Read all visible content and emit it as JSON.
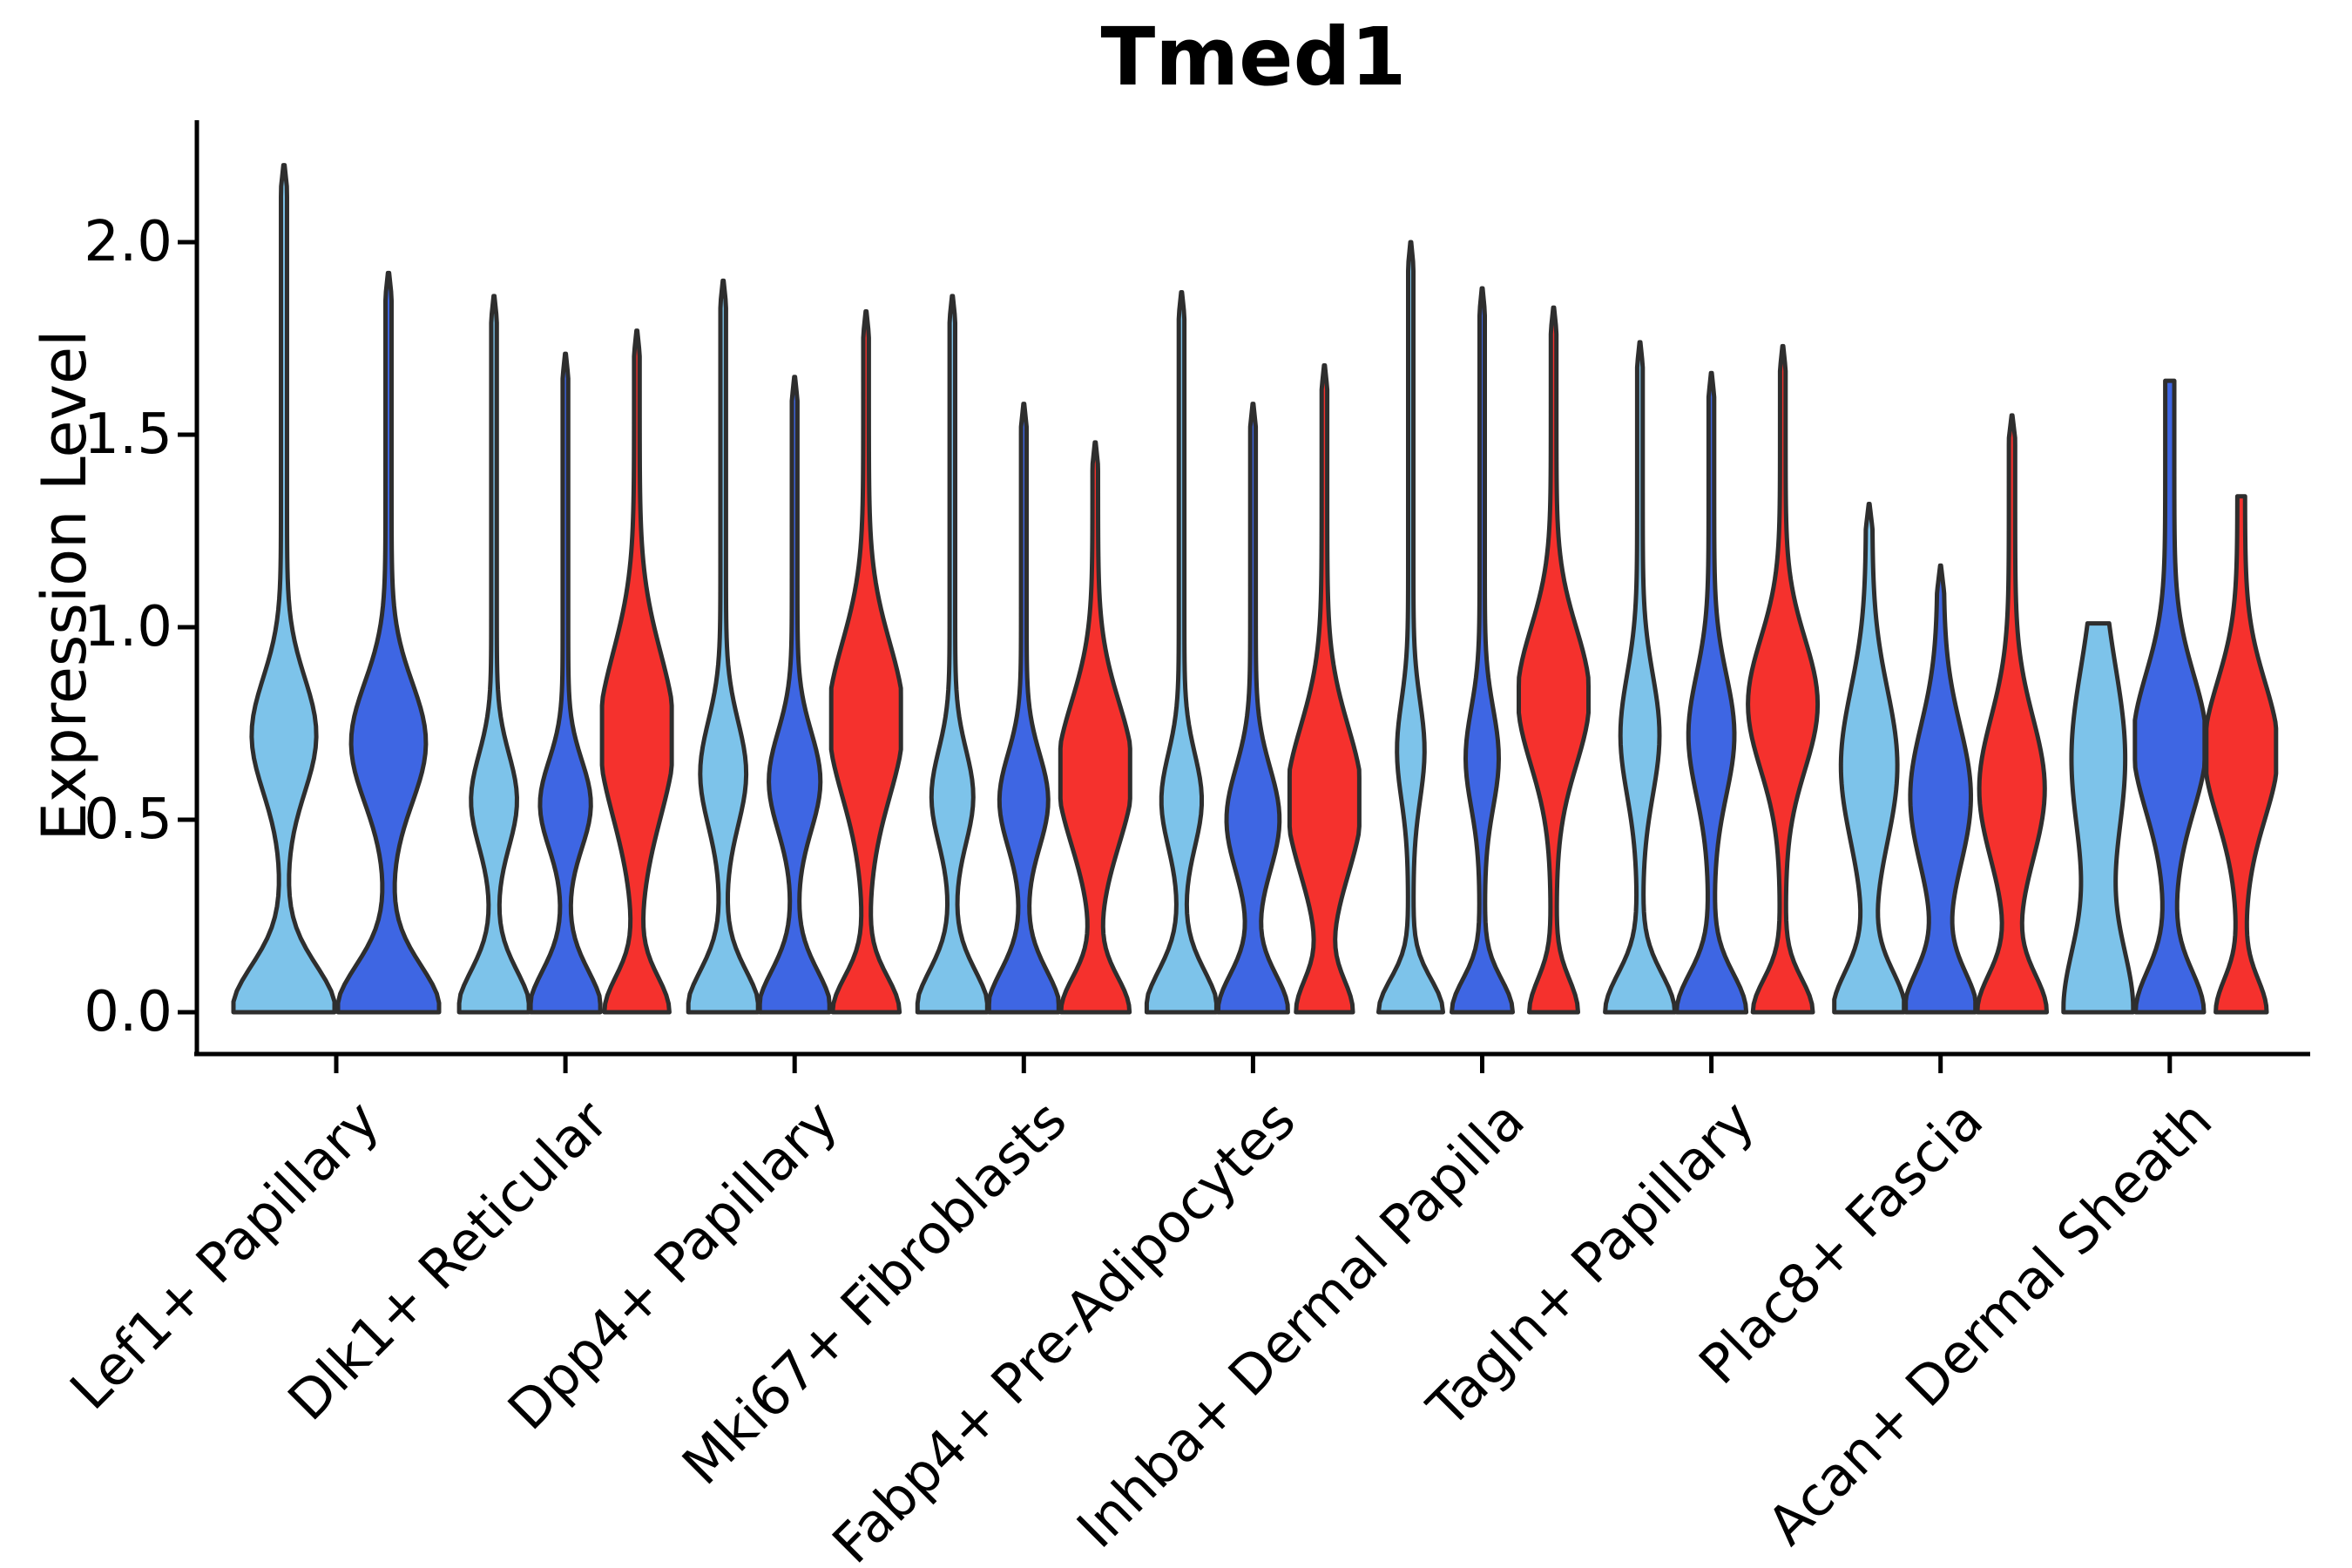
{
  "title": "Tmed1",
  "y_axis": {
    "label": "Expression Level",
    "tick_labels": [
      "0.0",
      "0.5",
      "1.0",
      "1.5",
      "2.0"
    ],
    "tick_values": [
      0.0,
      0.5,
      1.0,
      1.5,
      2.0
    ]
  },
  "colors": {
    "light_blue": "#7DC3EA",
    "dark_blue": "#3E66E3",
    "red": "#F5312D",
    "outline": "#2E2E2E",
    "axis": "#000000",
    "text": "#000000"
  },
  "chart_data": {
    "type": "violin",
    "title": "Tmed1",
    "xlabel": "",
    "ylabel": "Expression Level",
    "ylim": [
      -0.1,
      2.32
    ],
    "yticks": [
      0.0,
      0.5,
      1.0,
      1.5,
      2.0
    ],
    "grid": false,
    "legend": "none",
    "series_color_keys": [
      "light_blue",
      "dark_blue",
      "red"
    ],
    "categories": [
      "Lef1+ Papillary",
      "Dlk1+ Reticular",
      "Dpp4+ Papillary",
      "Mki67+ Fibroblasts",
      "Fabp4+ Pre-Adipocytes",
      "Inhba+ Dermal Papilla",
      "Tagln+ Papillary",
      "Plac8+ Fascia",
      "Acan+ Dermal Sheath"
    ],
    "groups": [
      {
        "category": "Lef1+ Papillary",
        "violins": [
          {
            "series": "light_blue",
            "peak": 2.2,
            "base": 0.97,
            "bsig": 0.17,
            "bc": 0.72,
            "bs": 0.21,
            "bamp": 0.58,
            "tailw": 0.06,
            "tip": "point"
          },
          {
            "series": "dark_blue",
            "peak": 1.92,
            "base": 0.97,
            "bsig": 0.17,
            "bc": 0.7,
            "bs": 0.22,
            "bamp": 0.68,
            "tailw": 0.06,
            "tip": "point"
          }
        ]
      },
      {
        "category": "Dlk1+ Reticular",
        "violins": [
          {
            "series": "light_blue",
            "peak": 1.86,
            "base": 0.97,
            "bsig": 0.15,
            "bc": 0.55,
            "bs": 0.17,
            "bamp": 0.58,
            "tailw": 0.08,
            "tip": "point"
          },
          {
            "series": "dark_blue",
            "peak": 1.71,
            "base": 0.97,
            "bsig": 0.15,
            "bc": 0.54,
            "bs": 0.16,
            "bamp": 0.65,
            "tailw": 0.08,
            "tip": "point"
          },
          {
            "series": "red",
            "peak": 1.77,
            "base": 0.85,
            "bsig": 0.13,
            "bc": 0.72,
            "bs": 0.3,
            "bamp": 1.0,
            "tailw": 0.08,
            "tip": "point"
          }
        ]
      },
      {
        "category": "Dpp4+ Papillary",
        "violins": [
          {
            "series": "light_blue",
            "peak": 1.9,
            "base": 0.97,
            "bsig": 0.15,
            "bc": 0.62,
            "bs": 0.19,
            "bamp": 0.58,
            "tailw": 0.08,
            "tip": "point"
          },
          {
            "series": "dark_blue",
            "peak": 1.65,
            "base": 0.97,
            "bsig": 0.15,
            "bc": 0.6,
            "bs": 0.18,
            "bamp": 0.66,
            "tailw": 0.08,
            "tip": "point"
          },
          {
            "series": "red",
            "peak": 1.82,
            "base": 0.88,
            "bsig": 0.13,
            "bc": 0.76,
            "bs": 0.28,
            "bamp": 1.0,
            "tailw": 0.08,
            "tip": "point"
          }
        ]
      },
      {
        "category": "Mki67+ Fibroblasts",
        "violins": [
          {
            "series": "light_blue",
            "peak": 1.86,
            "base": 0.97,
            "bsig": 0.15,
            "bc": 0.56,
            "bs": 0.17,
            "bamp": 0.52,
            "tailw": 0.08,
            "tip": "point"
          },
          {
            "series": "dark_blue",
            "peak": 1.58,
            "base": 0.97,
            "bsig": 0.15,
            "bc": 0.55,
            "bs": 0.17,
            "bamp": 0.62,
            "tailw": 0.08,
            "tip": "point"
          },
          {
            "series": "red",
            "peak": 1.48,
            "base": 0.9,
            "bsig": 0.13,
            "bc": 0.62,
            "bs": 0.26,
            "bamp": 1.0,
            "tailw": 0.08,
            "tip": "point"
          }
        ]
      },
      {
        "category": "Fabp4+ Pre-Adipocytes",
        "violins": [
          {
            "series": "light_blue",
            "peak": 1.87,
            "base": 0.97,
            "bsig": 0.15,
            "bc": 0.55,
            "bs": 0.17,
            "bamp": 0.5,
            "tailw": 0.08,
            "tip": "point"
          },
          {
            "series": "dark_blue",
            "peak": 1.58,
            "base": 0.93,
            "bsig": 0.14,
            "bc": 0.5,
            "bs": 0.19,
            "bamp": 0.68,
            "tailw": 0.08,
            "tip": "point"
          },
          {
            "series": "red",
            "peak": 1.68,
            "base": 0.72,
            "bsig": 0.12,
            "bc": 0.55,
            "bs": 0.27,
            "bamp": 1.0,
            "tailw": 0.08,
            "tip": "point"
          }
        ]
      },
      {
        "category": "Inhba+ Dermal Papilla",
        "violins": [
          {
            "series": "light_blue",
            "peak": 2.0,
            "base": 0.85,
            "bsig": 0.12,
            "bc": 0.68,
            "bs": 0.18,
            "bamp": 0.32,
            "tailw": 0.075,
            "tip": "point"
          },
          {
            "series": "dark_blue",
            "peak": 1.88,
            "base": 0.8,
            "bsig": 0.12,
            "bc": 0.66,
            "bs": 0.18,
            "bamp": 0.4,
            "tailw": 0.075,
            "tip": "point"
          },
          {
            "series": "red",
            "peak": 1.83,
            "base": 0.62,
            "bsig": 0.12,
            "bc": 0.82,
            "bs": 0.25,
            "bamp": 0.95,
            "tailw": 0.08,
            "tip": "point"
          }
        ]
      },
      {
        "category": "Tagln+ Papillary",
        "violins": [
          {
            "series": "light_blue",
            "peak": 1.74,
            "base": 0.92,
            "bsig": 0.14,
            "bc": 0.72,
            "bs": 0.22,
            "bamp": 0.48,
            "tailw": 0.08,
            "tip": "point"
          },
          {
            "series": "dark_blue",
            "peak": 1.66,
            "base": 0.92,
            "bsig": 0.14,
            "bc": 0.72,
            "bs": 0.22,
            "bamp": 0.58,
            "tailw": 0.08,
            "tip": "point"
          },
          {
            "series": "red",
            "peak": 1.73,
            "base": 0.78,
            "bsig": 0.12,
            "bc": 0.8,
            "bs": 0.24,
            "bamp": 0.92,
            "tailw": 0.08,
            "tip": "point"
          }
        ]
      },
      {
        "category": "Plac8+ Fascia",
        "violins": [
          {
            "series": "light_blue",
            "peak": 1.32,
            "base": 0.95,
            "bsig": 0.15,
            "bc": 0.64,
            "bs": 0.28,
            "bamp": 0.72,
            "tailw": 0.09,
            "tip": "point"
          },
          {
            "series": "dark_blue",
            "peak": 1.16,
            "base": 0.95,
            "bsig": 0.15,
            "bc": 0.56,
            "bs": 0.26,
            "bamp": 0.78,
            "tailw": 0.09,
            "tip": "point"
          },
          {
            "series": "red",
            "peak": 1.55,
            "base": 0.9,
            "bsig": 0.14,
            "bc": 0.58,
            "bs": 0.26,
            "bamp": 0.85,
            "tailw": 0.09,
            "tip": "point"
          }
        ]
      },
      {
        "category": "Acan+ Dermal Sheath",
        "violins": [
          {
            "series": "light_blue",
            "peak": 1.01,
            "base": 0.9,
            "bsig": 0.25,
            "bc": 0.66,
            "bs": 0.33,
            "bamp": 0.68,
            "tailw": 0.09,
            "tip": "flat",
            "tipw": 0.31
          },
          {
            "series": "dark_blue",
            "peak": 1.64,
            "base": 0.85,
            "bsig": 0.15,
            "bc": 0.7,
            "bs": 0.25,
            "bamp": 0.92,
            "tailw": 0.13,
            "tip": "flat",
            "tipw": 0.13
          },
          {
            "series": "red",
            "peak": 1.34,
            "base": 0.62,
            "bsig": 0.12,
            "bc": 0.68,
            "bs": 0.25,
            "bamp": 0.95,
            "tailw": 0.11,
            "tip": "flat",
            "tipw": 0.11
          }
        ]
      }
    ]
  }
}
